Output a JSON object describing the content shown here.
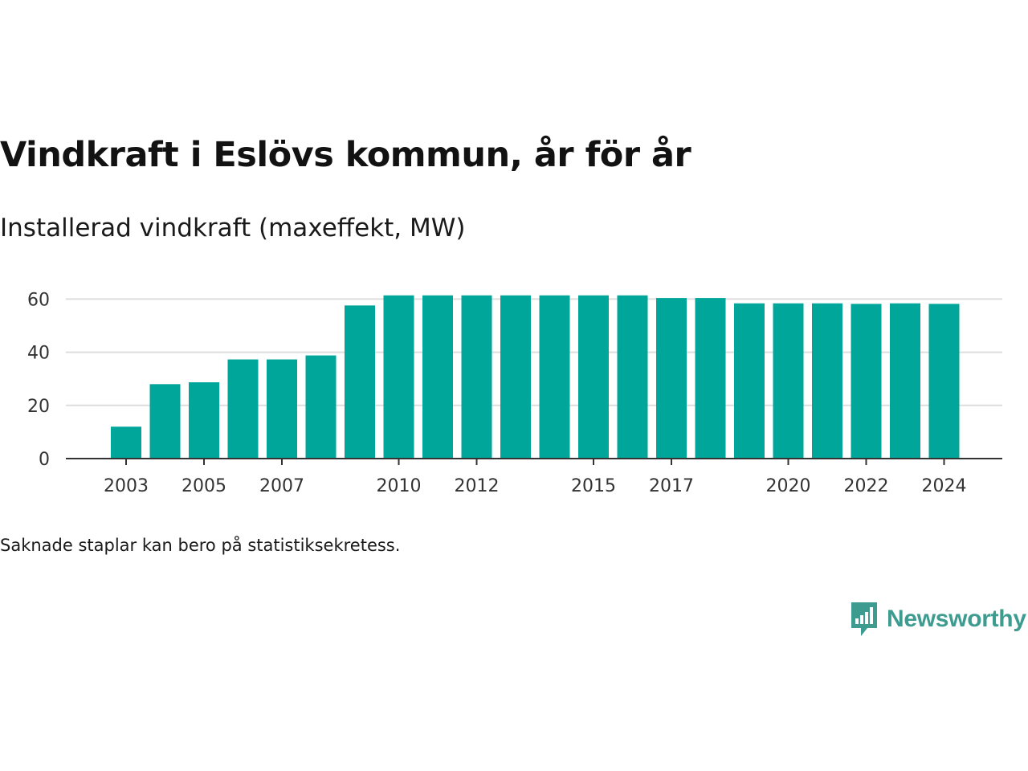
{
  "colors": {
    "bar": "#00a699",
    "grid": "#dddddd",
    "axis": "#333333",
    "brand": "#3d9b8f"
  },
  "chart_data": {
    "type": "bar",
    "title": "Vindkraft i Eslövs kommun, år för år",
    "subtitle": "Installerad vindkraft (maxeffekt, MW)",
    "xlabel": "",
    "ylabel": "",
    "categories": [
      2003,
      2004,
      2005,
      2006,
      2007,
      2008,
      2009,
      2010,
      2011,
      2012,
      2013,
      2014,
      2015,
      2016,
      2017,
      2018,
      2019,
      2020,
      2021,
      2022,
      2023,
      2024
    ],
    "values": [
      12,
      28,
      28.7,
      37.3,
      37.3,
      38.8,
      57.6,
      61.4,
      61.4,
      61.4,
      61.4,
      61.4,
      61.4,
      61.4,
      60.4,
      60.4,
      58.4,
      58.4,
      58.4,
      58.2,
      58.4,
      58.2
    ],
    "ylim": [
      0,
      65
    ],
    "yticks": [
      0,
      20,
      40,
      60
    ],
    "xticks": [
      2003,
      2005,
      2007,
      2010,
      2012,
      2015,
      2017,
      2020,
      2022,
      2024
    ],
    "grid": true,
    "legend": "none"
  },
  "note": "Saknade staplar kan bero på statistiksekretess.",
  "logo": {
    "text": "Newsworthy",
    "icon": "bar-chart-speech-bubble-icon"
  }
}
